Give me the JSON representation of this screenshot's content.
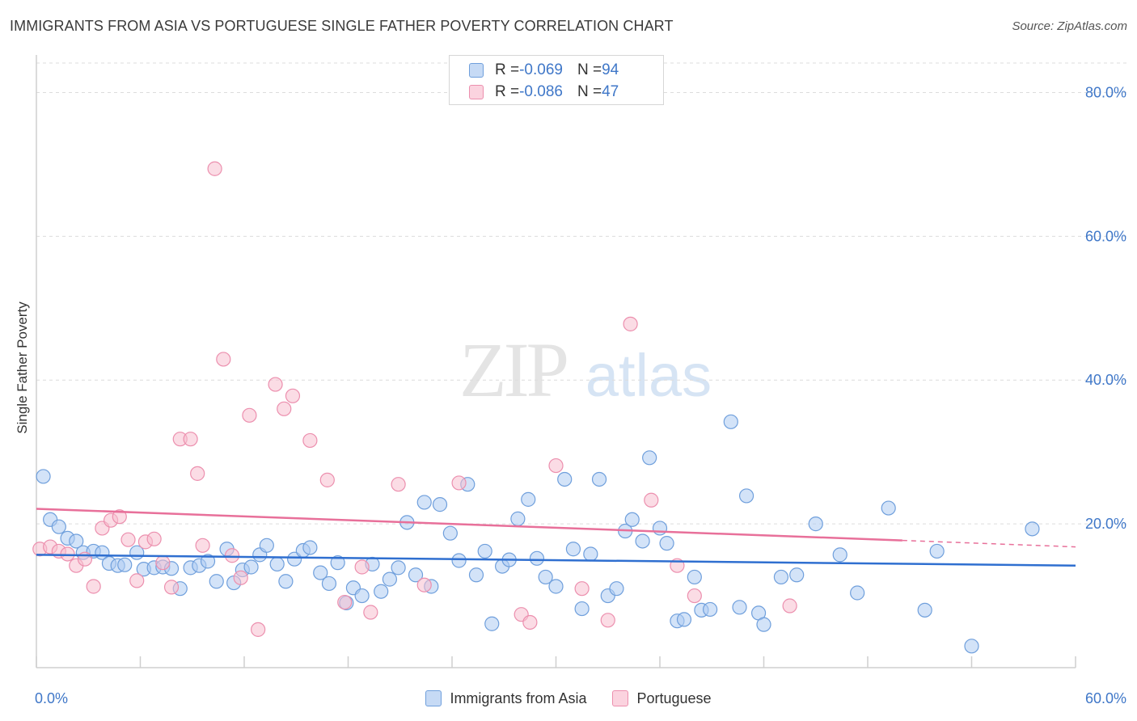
{
  "header": {
    "title": "IMMIGRANTS FROM ASIA VS PORTUGUESE SINGLE FATHER POVERTY CORRELATION CHART",
    "source": "Source: ZipAtlas.com"
  },
  "watermark": {
    "zip": "ZIP",
    "atlas": "atlas"
  },
  "legend_top": {
    "rows": [
      {
        "r_label": "R = ",
        "r_value": "-0.069",
        "n_label": "N = ",
        "n_value": "94",
        "color": "#aeccf2"
      },
      {
        "r_label": "R = ",
        "r_value": "-0.086",
        "n_label": "N = ",
        "n_value": "47",
        "color": "#f7bfd0"
      }
    ]
  },
  "legend_bottom": {
    "items": [
      {
        "label": "Immigrants from Asia",
        "color": "#aeccf2"
      },
      {
        "label": "Portuguese",
        "color": "#f7bfd0"
      }
    ]
  },
  "chart_data": {
    "type": "scatter",
    "title": "IMMIGRANTS FROM ASIA VS PORTUGUESE SINGLE FATHER POVERTY CORRELATION CHART",
    "xlabel": "",
    "ylabel": "Single Father Poverty",
    "xlim": [
      0,
      60
    ],
    "ylim": [
      0,
      85
    ],
    "x_tick_labels": [
      "0.0%",
      "60.0%"
    ],
    "y_ticks": [
      20,
      40,
      60,
      80
    ],
    "y_tick_labels": [
      "20.0%",
      "40.0%",
      "60.0%",
      "80.0%"
    ],
    "grid": "horizontal dashed",
    "legend_placement": "top-center",
    "colors": {
      "asia_fill": "#aeccf2",
      "asia_stroke": "#6f9fdc",
      "asia_line": "#2f6fd0",
      "portuguese_fill": "#f7bfd0",
      "portuguese_stroke": "#ec8fae",
      "portuguese_line": "#e8709a",
      "tick_text": "#3f77c8"
    },
    "series": [
      {
        "name": "Immigrants from Asia",
        "r": -0.069,
        "n": 94,
        "trend": {
          "x": [
            0,
            60
          ],
          "y": [
            15.7,
            14.2
          ]
        },
        "points": [
          [
            0.4,
            26.6
          ],
          [
            0.8,
            20.6
          ],
          [
            1.3,
            19.6
          ],
          [
            1.8,
            18.0
          ],
          [
            2.3,
            17.6
          ],
          [
            2.7,
            16.0
          ],
          [
            3.3,
            16.2
          ],
          [
            3.8,
            16.0
          ],
          [
            4.2,
            14.5
          ],
          [
            4.7,
            14.2
          ],
          [
            5.1,
            14.3
          ],
          [
            5.8,
            16.0
          ],
          [
            6.2,
            13.7
          ],
          [
            6.8,
            13.9
          ],
          [
            7.3,
            14.0
          ],
          [
            7.8,
            13.8
          ],
          [
            8.3,
            11.0
          ],
          [
            8.9,
            13.9
          ],
          [
            9.4,
            14.2
          ],
          [
            9.9,
            14.8
          ],
          [
            10.4,
            12.0
          ],
          [
            11.0,
            16.5
          ],
          [
            11.4,
            11.8
          ],
          [
            11.9,
            13.6
          ],
          [
            12.4,
            14.0
          ],
          [
            12.9,
            15.7
          ],
          [
            13.3,
            17.0
          ],
          [
            13.9,
            14.4
          ],
          [
            14.4,
            12.0
          ],
          [
            14.9,
            15.1
          ],
          [
            15.4,
            16.3
          ],
          [
            15.8,
            16.7
          ],
          [
            16.4,
            13.2
          ],
          [
            16.9,
            11.7
          ],
          [
            17.4,
            14.6
          ],
          [
            17.9,
            9.0
          ],
          [
            18.3,
            11.1
          ],
          [
            18.8,
            10.0
          ],
          [
            19.4,
            14.4
          ],
          [
            19.9,
            10.6
          ],
          [
            20.4,
            12.3
          ],
          [
            20.9,
            13.9
          ],
          [
            21.4,
            20.2
          ],
          [
            21.9,
            12.9
          ],
          [
            22.4,
            23.0
          ],
          [
            22.8,
            11.3
          ],
          [
            23.3,
            22.7
          ],
          [
            23.9,
            18.7
          ],
          [
            24.4,
            14.9
          ],
          [
            24.9,
            25.5
          ],
          [
            25.4,
            12.9
          ],
          [
            25.9,
            16.2
          ],
          [
            26.3,
            6.1
          ],
          [
            26.9,
            14.1
          ],
          [
            27.3,
            15.0
          ],
          [
            27.8,
            20.7
          ],
          [
            28.4,
            23.4
          ],
          [
            28.9,
            15.2
          ],
          [
            29.4,
            12.6
          ],
          [
            30.0,
            11.3
          ],
          [
            30.5,
            26.2
          ],
          [
            31.0,
            16.5
          ],
          [
            31.5,
            8.2
          ],
          [
            32.0,
            15.8
          ],
          [
            32.5,
            26.2
          ],
          [
            33.0,
            10.0
          ],
          [
            33.5,
            11.0
          ],
          [
            34.0,
            19.0
          ],
          [
            34.4,
            20.6
          ],
          [
            35.0,
            17.6
          ],
          [
            35.4,
            29.2
          ],
          [
            36.0,
            19.4
          ],
          [
            36.4,
            17.3
          ],
          [
            37.0,
            6.5
          ],
          [
            37.4,
            6.7
          ],
          [
            38.0,
            12.6
          ],
          [
            38.4,
            8.0
          ],
          [
            38.9,
            8.1
          ],
          [
            40.1,
            34.2
          ],
          [
            40.6,
            8.4
          ],
          [
            41.0,
            23.9
          ],
          [
            41.7,
            7.6
          ],
          [
            42.0,
            6.0
          ],
          [
            43.0,
            12.6
          ],
          [
            43.9,
            12.9
          ],
          [
            45.0,
            20.0
          ],
          [
            46.4,
            15.7
          ],
          [
            47.4,
            10.4
          ],
          [
            49.2,
            22.2
          ],
          [
            51.3,
            8.0
          ],
          [
            52.0,
            16.2
          ],
          [
            54.0,
            3.0
          ],
          [
            57.5,
            19.3
          ]
        ]
      },
      {
        "name": "Portuguese",
        "r": -0.086,
        "n": 47,
        "trend": {
          "x": [
            0,
            50
          ],
          "y": [
            22.1,
            17.7
          ],
          "dashed_to": [
            60,
            16.8
          ]
        },
        "points": [
          [
            0.2,
            16.5
          ],
          [
            0.8,
            16.8
          ],
          [
            1.3,
            16.2
          ],
          [
            1.8,
            15.8
          ],
          [
            2.3,
            14.2
          ],
          [
            2.8,
            15.1
          ],
          [
            3.3,
            11.3
          ],
          [
            3.8,
            19.4
          ],
          [
            4.3,
            20.5
          ],
          [
            4.8,
            21.0
          ],
          [
            5.3,
            17.8
          ],
          [
            5.8,
            12.1
          ],
          [
            6.3,
            17.5
          ],
          [
            6.8,
            17.9
          ],
          [
            7.3,
            14.6
          ],
          [
            7.8,
            11.2
          ],
          [
            8.3,
            31.8
          ],
          [
            8.9,
            31.8
          ],
          [
            9.3,
            27.0
          ],
          [
            9.6,
            17.0
          ],
          [
            10.3,
            69.4
          ],
          [
            10.8,
            42.9
          ],
          [
            11.3,
            15.6
          ],
          [
            11.8,
            12.5
          ],
          [
            12.3,
            35.1
          ],
          [
            12.8,
            5.3
          ],
          [
            13.8,
            39.4
          ],
          [
            14.3,
            36.0
          ],
          [
            14.8,
            37.8
          ],
          [
            15.8,
            31.6
          ],
          [
            16.8,
            26.1
          ],
          [
            17.8,
            9.1
          ],
          [
            18.8,
            14.0
          ],
          [
            19.3,
            7.7
          ],
          [
            20.9,
            25.5
          ],
          [
            22.4,
            11.5
          ],
          [
            24.4,
            25.7
          ],
          [
            28.0,
            7.4
          ],
          [
            28.5,
            6.3
          ],
          [
            30.0,
            28.1
          ],
          [
            31.5,
            11.0
          ],
          [
            33.0,
            6.6
          ],
          [
            34.3,
            47.8
          ],
          [
            35.5,
            23.3
          ],
          [
            37.0,
            14.2
          ],
          [
            38.0,
            10.0
          ],
          [
            43.5,
            8.6
          ]
        ]
      }
    ]
  }
}
